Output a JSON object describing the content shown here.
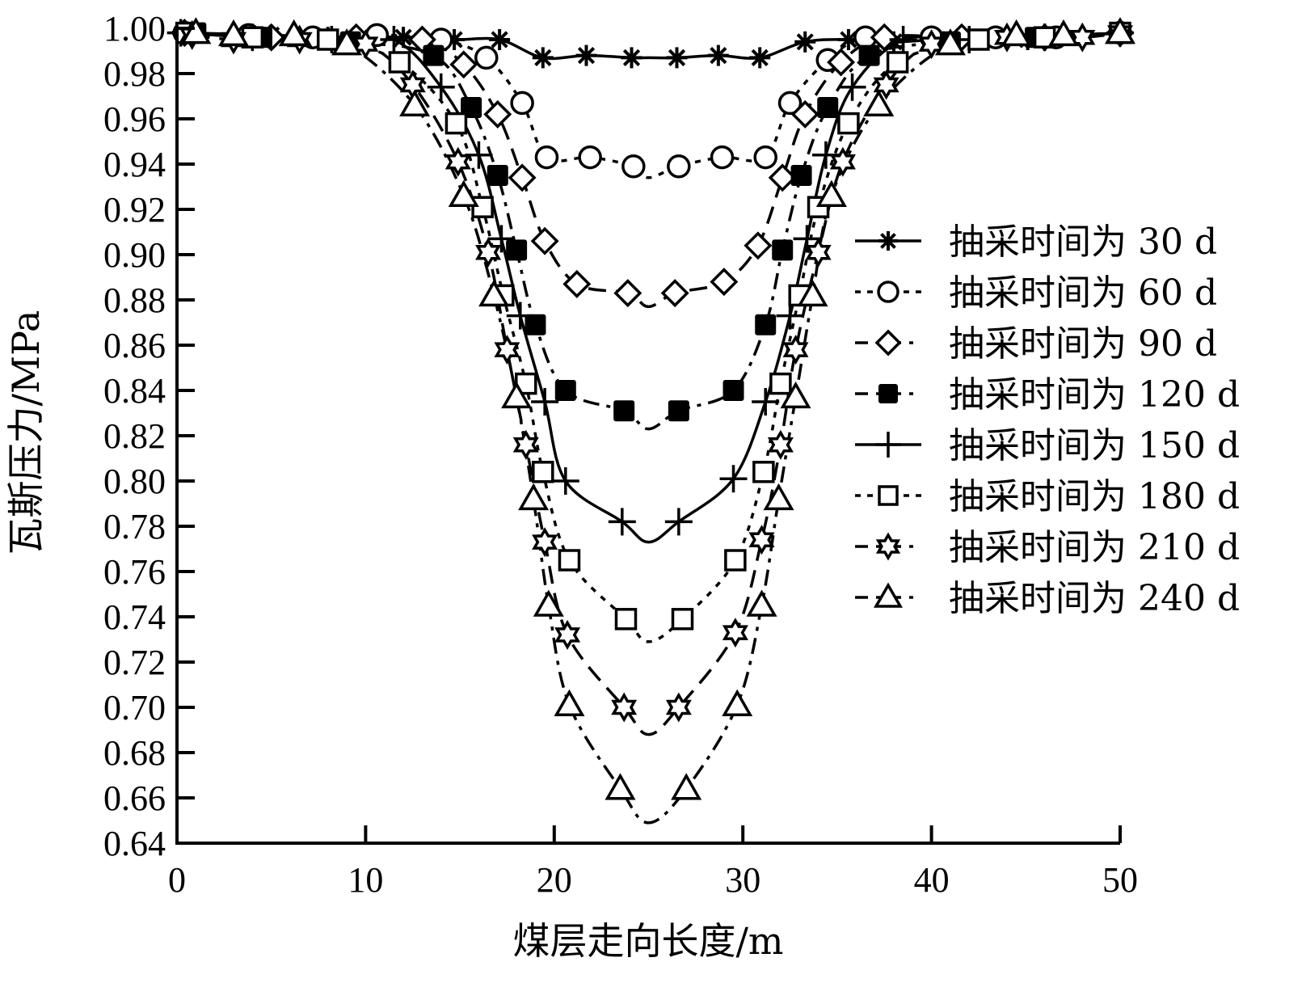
{
  "chart_data": {
    "type": "line",
    "title": "",
    "xlabel": "煤层走向长度/m",
    "ylabel": "瓦斯压力/MPa",
    "xlim": [
      0,
      50
    ],
    "ylim": [
      0.64,
      1.0
    ],
    "xticks": [
      0,
      10,
      20,
      30,
      40,
      50
    ],
    "xtick_labels": [
      "0",
      "10",
      "20",
      "30",
      "40",
      "50"
    ],
    "yticks": [
      0.64,
      0.66,
      0.68,
      0.7,
      0.72,
      0.74,
      0.76,
      0.78,
      0.8,
      0.82,
      0.84,
      0.86,
      0.88,
      0.9,
      0.92,
      0.94,
      0.96,
      0.98,
      1.0
    ],
    "ytick_labels": [
      "0.64",
      "0.66",
      "0.68",
      "0.70",
      "0.72",
      "0.74",
      "0.76",
      "0.78",
      "0.80",
      "0.82",
      "0.84",
      "0.86",
      "0.88",
      "0.90",
      "0.92",
      "0.94",
      "0.96",
      "0.98",
      "1.00"
    ],
    "grid": false,
    "legend_position": "right-middle",
    "series": [
      {
        "name": "抽采时间为 30 d",
        "marker": "asterisk",
        "line_style": "solid",
        "x": [
          0.4,
          5,
          8,
          12,
          14.7,
          17.1,
          19.4,
          21.7,
          24.1,
          26.5,
          28.7,
          30.9,
          33.3,
          35.6,
          38,
          40.3,
          42.7,
          45.1,
          50
        ],
        "y": [
          0.998,
          0.997,
          0.996,
          0.996,
          0.995,
          0.995,
          0.987,
          0.988,
          0.987,
          0.987,
          0.988,
          0.987,
          0.994,
          0.995,
          0.994,
          0.995,
          0.995,
          0.995,
          0.998
        ]
      },
      {
        "name": "抽采时间为 60 d",
        "marker": "circle",
        "line_style": "dotted",
        "x": [
          0.4,
          3.8,
          7.2,
          10.6,
          14,
          16.4,
          18.3,
          19.6,
          21.9,
          24.2,
          26.6,
          28.9,
          31.2,
          32.5,
          34.5,
          36.5,
          40,
          43.4,
          46.6,
          50
        ],
        "y": [
          0.998,
          0.997,
          0.996,
          0.997,
          0.995,
          0.987,
          0.967,
          0.943,
          0.943,
          0.939,
          0.939,
          0.943,
          0.943,
          0.967,
          0.986,
          0.996,
          0.996,
          0.996,
          0.996,
          0.998
        ]
      },
      {
        "name": "抽采时间为 90 d",
        "marker": "diamond",
        "line_style": "long-dash",
        "x": [
          0.4,
          5,
          9.5,
          13,
          15.2,
          17,
          18.3,
          19.5,
          21.2,
          23.9,
          26.4,
          29,
          30.8,
          32.1,
          33.3,
          35.2,
          37.5,
          41.6,
          46,
          50
        ],
        "y": [
          0.998,
          0.996,
          0.996,
          0.995,
          0.984,
          0.962,
          0.934,
          0.906,
          0.887,
          0.883,
          0.883,
          0.888,
          0.904,
          0.934,
          0.962,
          0.985,
          0.996,
          0.996,
          0.996,
          0.998
        ]
      },
      {
        "name": "抽采时间为 120 d",
        "marker": "filled-square",
        "line_style": "dash-dot",
        "x": [
          1,
          4.5,
          9.2,
          13.6,
          15.6,
          17,
          18,
          19,
          20.6,
          23.7,
          26.6,
          29.5,
          31.2,
          32.1,
          33.1,
          34.5,
          36.7,
          41,
          45.5,
          50
        ],
        "y": [
          0.998,
          0.996,
          0.994,
          0.988,
          0.965,
          0.935,
          0.902,
          0.869,
          0.84,
          0.831,
          0.831,
          0.84,
          0.869,
          0.902,
          0.935,
          0.965,
          0.988,
          0.994,
          0.996,
          0.998
        ]
      },
      {
        "name": "抽采时间为 150 d",
        "marker": "plus",
        "line_style": "solid",
        "x": [
          0.2,
          4,
          8.2,
          11.5,
          14,
          16,
          17.2,
          18.2,
          19.5,
          20.6,
          23.6,
          26.6,
          29.5,
          31.2,
          32.5,
          33.4,
          34.4,
          35.8,
          38.5,
          42,
          46,
          50
        ],
        "y": [
          0.998,
          0.996,
          0.995,
          0.995,
          0.974,
          0.944,
          0.907,
          0.873,
          0.835,
          0.8,
          0.782,
          0.782,
          0.801,
          0.835,
          0.873,
          0.907,
          0.944,
          0.974,
          0.995,
          0.995,
          0.996,
          0.998
        ]
      },
      {
        "name": "抽采时间为 180 d",
        "marker": "square",
        "line_style": "dotted",
        "x": [
          0.5,
          4,
          8,
          11.8,
          14.8,
          16.2,
          17.3,
          18.5,
          19.4,
          20.8,
          23.8,
          26.8,
          29.6,
          31.1,
          32,
          33,
          34,
          35.6,
          38.2,
          42.5,
          46,
          50
        ],
        "y": [
          0.998,
          0.996,
          0.995,
          0.985,
          0.958,
          0.921,
          0.882,
          0.843,
          0.804,
          0.765,
          0.739,
          0.739,
          0.765,
          0.804,
          0.843,
          0.882,
          0.921,
          0.958,
          0.985,
          0.995,
          0.996,
          0.998
        ]
      },
      {
        "name": "抽采时间为 210 d",
        "marker": "star6",
        "line_style": "long-dash",
        "x": [
          0.8,
          3,
          6.5,
          10,
          12.5,
          14.9,
          16.5,
          17.5,
          18.5,
          19.5,
          20.7,
          23.7,
          26.6,
          29.6,
          31,
          32,
          32.8,
          34,
          35.3,
          37.6,
          40,
          44,
          48,
          50
        ],
        "y": [
          0.997,
          0.995,
          0.995,
          0.993,
          0.975,
          0.941,
          0.901,
          0.858,
          0.816,
          0.773,
          0.732,
          0.7,
          0.7,
          0.733,
          0.774,
          0.816,
          0.858,
          0.901,
          0.941,
          0.975,
          0.993,
          0.996,
          0.996,
          0.998
        ]
      },
      {
        "name": "抽采时间为 240 d",
        "marker": "triangle",
        "line_style": "dash-dot",
        "x": [
          1,
          3,
          6.2,
          9,
          12.6,
          15.2,
          16.8,
          18,
          18.9,
          19.7,
          20.8,
          23.5,
          27,
          29.7,
          31,
          31.9,
          32.8,
          33.7,
          34.7,
          37.2,
          41,
          44.5,
          47,
          50
        ],
        "y": [
          0.998,
          0.997,
          0.997,
          0.993,
          0.966,
          0.926,
          0.882,
          0.837,
          0.792,
          0.745,
          0.701,
          0.664,
          0.664,
          0.701,
          0.745,
          0.792,
          0.837,
          0.882,
          0.926,
          0.966,
          0.993,
          0.997,
          0.997,
          0.998
        ]
      }
    ],
    "curve_minima_at_center": {
      "x": 25,
      "values": [
        0.987,
        0.934,
        0.877,
        0.823,
        0.773,
        0.729,
        0.688,
        0.649
      ]
    }
  },
  "legend": {
    "items": [
      {
        "label": "抽采时间为 30 d"
      },
      {
        "label": "抽采时间为 60 d"
      },
      {
        "label": "抽采时间为 90 d"
      },
      {
        "label": "抽采时间为 120 d"
      },
      {
        "label": "抽采时间为 150 d"
      },
      {
        "label": "抽采时间为 180 d"
      },
      {
        "label": "抽采时间为 210 d"
      },
      {
        "label": "抽采时间为 240 d"
      }
    ]
  },
  "axes": {
    "x_title": "煤层走向长度/m",
    "y_title": "瓦斯压力/MPa"
  }
}
